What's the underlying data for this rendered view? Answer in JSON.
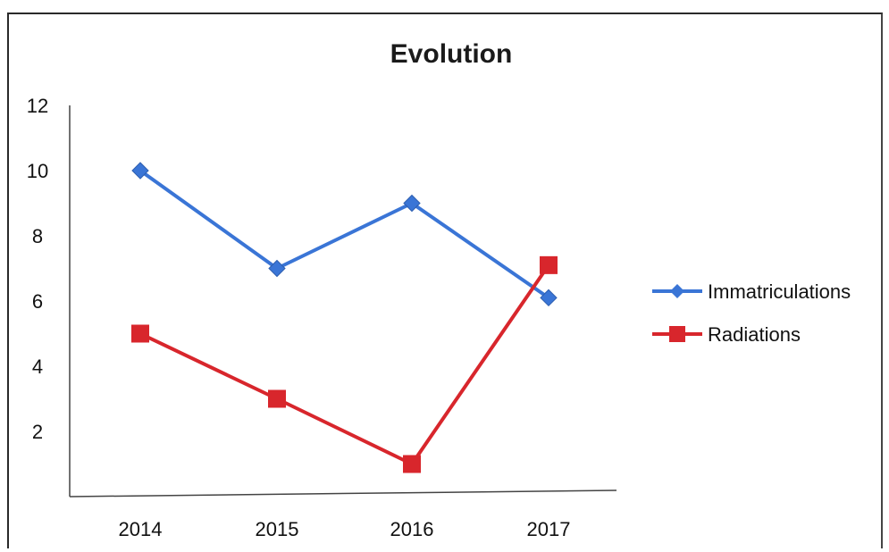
{
  "chart_data": {
    "type": "line",
    "title": "Evolution",
    "xlabel": "",
    "ylabel": "",
    "categories": [
      "2014",
      "2015",
      "2016",
      "2017"
    ],
    "y_ticks": [
      "2",
      "4",
      "6",
      "8",
      "10",
      "12"
    ],
    "ylim": [
      0,
      12
    ],
    "grid": false,
    "legend_position": "right",
    "series": [
      {
        "name": "Immatriculations",
        "values": [
          10,
          7,
          9,
          6.1
        ],
        "color": "#3a75d6",
        "marker": "diamond"
      },
      {
        "name": "Radiations",
        "values": [
          5,
          3,
          1,
          7.1
        ],
        "color": "#d8262c",
        "marker": "square"
      }
    ]
  }
}
